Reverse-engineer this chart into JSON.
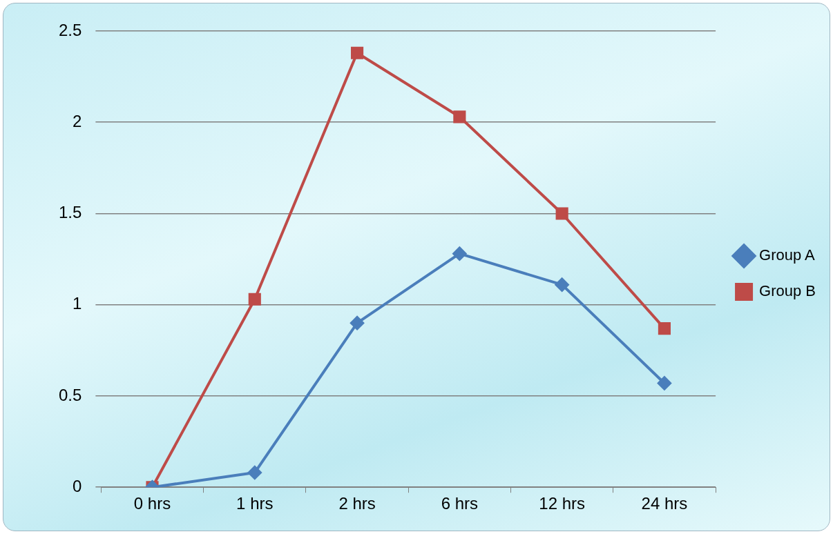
{
  "chart_data": {
    "type": "line",
    "categories": [
      "0 hrs",
      "1 hrs",
      "2 hrs",
      "6 hrs",
      "12 hrs",
      "24 hrs"
    ],
    "series": [
      {
        "name": "Group A",
        "color": "#4a7ebb",
        "marker": "diamond",
        "values": [
          0,
          0.08,
          0.9,
          1.28,
          1.11,
          0.57
        ]
      },
      {
        "name": "Group B",
        "color": "#be4b48",
        "marker": "square",
        "values": [
          0,
          1.03,
          2.38,
          2.03,
          1.5,
          0.87
        ]
      }
    ],
    "ylim": [
      0,
      2.5
    ],
    "yticks": [
      0,
      0.5,
      1,
      1.5,
      2,
      2.5
    ],
    "grid": "y",
    "legend": "right",
    "line_style": "solid"
  }
}
